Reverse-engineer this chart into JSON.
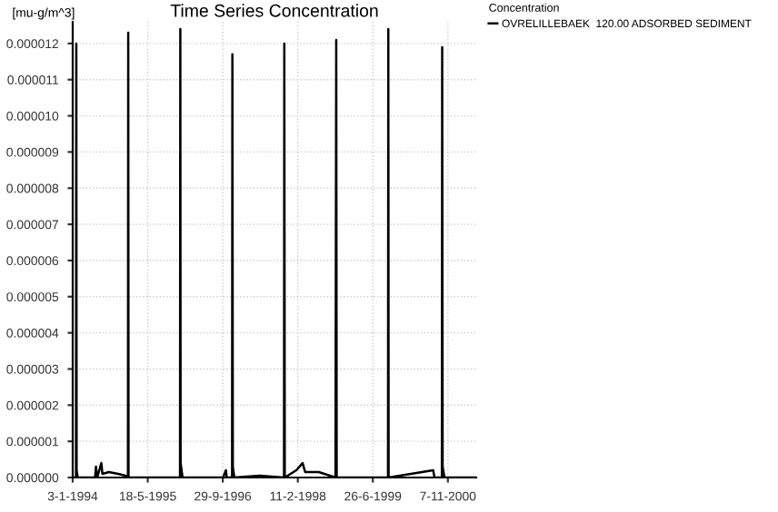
{
  "chart_data": {
    "type": "line",
    "title": "Time Series Concentration",
    "ylabel": "[mu-g/m^3]",
    "legend_title": "Concentration",
    "legend": "top right",
    "grid": true,
    "xlim": [
      "1994-01-03",
      "2001-05-15"
    ],
    "ylim": [
      0,
      1.26e-05
    ],
    "xticks": [
      {
        "value": "1994-01-03",
        "label": "3-1-1994"
      },
      {
        "value": "1995-05-18",
        "label": "18-5-1995"
      },
      {
        "value": "1996-09-29",
        "label": "29-9-1996"
      },
      {
        "value": "1998-02-11",
        "label": "11-2-1998"
      },
      {
        "value": "1999-06-26",
        "label": "26-6-1999"
      },
      {
        "value": "2000-11-07",
        "label": "7-11-2000"
      }
    ],
    "yticks": [
      {
        "value": 0,
        "label": "0.000000"
      },
      {
        "value": 1e-06,
        "label": "0.000001"
      },
      {
        "value": 2e-06,
        "label": "0.000002"
      },
      {
        "value": 3e-06,
        "label": "0.000003"
      },
      {
        "value": 4e-06,
        "label": "0.000004"
      },
      {
        "value": 5e-06,
        "label": "0.000005"
      },
      {
        "value": 6e-06,
        "label": "0.000006"
      },
      {
        "value": 7e-06,
        "label": "0.000007"
      },
      {
        "value": 8e-06,
        "label": "0.000008"
      },
      {
        "value": 9e-06,
        "label": "0.000009"
      },
      {
        "value": 1e-05,
        "label": "0.000010"
      },
      {
        "value": 1.1e-05,
        "label": "0.000011"
      },
      {
        "value": 1.2e-05,
        "label": "0.000012"
      }
    ],
    "series": [
      {
        "name": "OVRELILLEBAEK  120.00 ADSORBED SEDIMENT",
        "color": "#000000",
        "x": [
          "1994-01-03",
          "1994-01-25",
          "1994-01-27",
          "1994-01-29",
          "1994-02-05",
          "1994-06-01",
          "1994-06-07",
          "1994-06-15",
          "1994-07-13",
          "1994-07-20",
          "1994-09-01",
          "1994-11-01",
          "1994-12-20",
          "1995-01-06",
          "1995-01-08",
          "1995-01-10",
          "1995-12-19",
          "1995-12-21",
          "1995-12-23",
          "1996-01-05",
          "1996-10-01",
          "1996-10-20",
          "1996-10-25",
          "1996-11-30",
          "1996-12-02",
          "1996-12-05",
          "1996-12-15",
          "1997-06-01",
          "1997-11-11",
          "1997-11-13",
          "1997-11-16",
          "1998-02-01",
          "1998-03-15",
          "1998-04-01",
          "1998-07-01",
          "1998-10-20",
          "1998-10-25",
          "1998-10-28",
          "1999-10-05",
          "1999-10-07",
          "1999-10-09",
          "2000-08-01",
          "2000-08-10",
          "2000-09-28",
          "2000-09-30",
          "2000-10-03",
          "2000-10-15",
          "2001-05-15"
        ],
        "values": [
          0,
          0,
          1.2e-05,
          2e-07,
          0,
          0,
          3e-07,
          0,
          4e-07,
          1e-07,
          1.5e-07,
          1e-07,
          5e-08,
          0,
          1.23e-05,
          0,
          0,
          1.24e-05,
          4e-07,
          0,
          0,
          2e-07,
          0,
          0,
          1.17e-05,
          3e-07,
          0,
          5e-08,
          0,
          1.2e-05,
          0,
          2e-07,
          4e-07,
          1.5e-07,
          1.5e-07,
          0,
          1.21e-05,
          0,
          0,
          1.24e-05,
          0,
          2e-07,
          0,
          0,
          1.19e-05,
          3e-07,
          0,
          0
        ]
      }
    ]
  }
}
